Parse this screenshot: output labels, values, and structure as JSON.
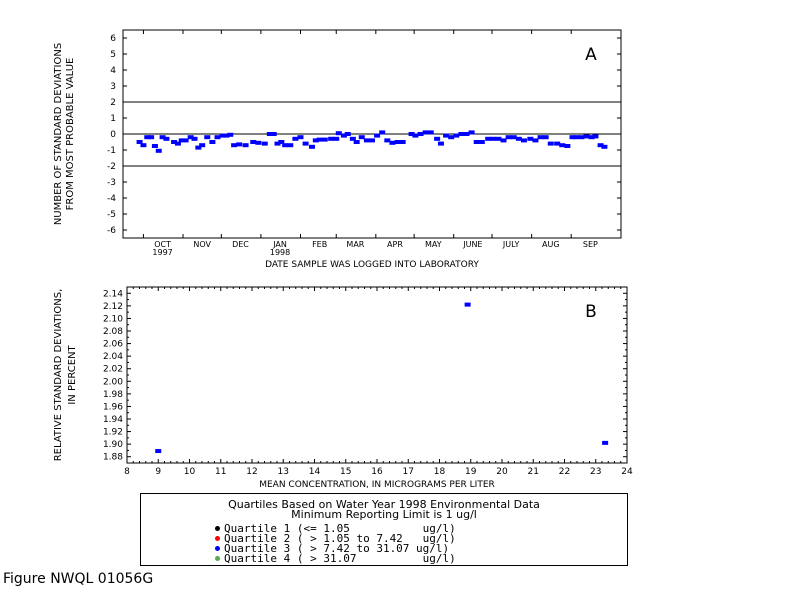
{
  "chart_data": [
    {
      "type": "scatter",
      "panel_label": "A",
      "xlabel": "DATE SAMPLE WAS LOGGED INTO LABORATORY",
      "ylabel": [
        "NUMBER OF STANDARD DEVIATIONS",
        "FROM MOST PROBABLE VALUE"
      ],
      "xlim": [
        "1997-09-15",
        "1998-10-10"
      ],
      "ylim": [
        -6.5,
        6.5
      ],
      "yticks": [
        6,
        5,
        4,
        3,
        2,
        1,
        0,
        -1,
        -2,
        -3,
        -4,
        -5,
        -6
      ],
      "xticks": [
        {
          "date": "1997-10-01",
          "label": "OCT",
          "sublabel": "1997"
        },
        {
          "date": "1997-11-01",
          "label": "NOV"
        },
        {
          "date": "1997-12-01",
          "label": "DEC"
        },
        {
          "date": "1998-01-01",
          "label": "JAN",
          "sublabel": "1998"
        },
        {
          "date": "1998-02-01",
          "label": "FEB"
        },
        {
          "date": "1998-03-01",
          "label": "MAR"
        },
        {
          "date": "1998-04-01",
          "label": "APR"
        },
        {
          "date": "1998-05-01",
          "label": "MAY"
        },
        {
          "date": "1998-06-01",
          "label": "JUNE"
        },
        {
          "date": "1998-07-01",
          "label": "JULY"
        },
        {
          "date": "1998-08-01",
          "label": "AUG"
        },
        {
          "date": "1998-09-01",
          "label": "SEP"
        }
      ],
      "reference_lines": [
        2,
        0,
        -2
      ],
      "series": [
        {
          "color": "#0000ff",
          "points": [
            [
              "1997-09-28",
              -0.5
            ],
            [
              "1997-10-01",
              -0.7
            ],
            [
              "1997-10-04",
              -0.2
            ],
            [
              "1997-10-07",
              -0.2
            ],
            [
              "1997-10-10",
              -0.75
            ],
            [
              "1997-10-13",
              -1.05
            ],
            [
              "1997-10-16",
              -0.2
            ],
            [
              "1997-10-19",
              -0.3
            ],
            [
              "1997-10-25",
              -0.5
            ],
            [
              "1997-10-28",
              -0.6
            ],
            [
              "1997-10-31",
              -0.4
            ],
            [
              "1997-11-03",
              -0.4
            ],
            [
              "1997-11-07",
              -0.2
            ],
            [
              "1997-11-10",
              -0.3
            ],
            [
              "1997-11-13",
              -0.85
            ],
            [
              "1997-11-16",
              -0.7
            ],
            [
              "1997-11-20",
              -0.2
            ],
            [
              "1997-11-24",
              -0.5
            ],
            [
              "1997-11-28",
              -0.2
            ],
            [
              "1997-12-02",
              -0.1
            ],
            [
              "1997-12-05",
              -0.1
            ],
            [
              "1997-12-08",
              -0.05
            ],
            [
              "1997-12-11",
              -0.7
            ],
            [
              "1997-12-15",
              -0.65
            ],
            [
              "1997-12-20",
              -0.7
            ],
            [
              "1997-12-26",
              -0.5
            ],
            [
              "1997-12-30",
              -0.55
            ],
            [
              "1998-01-04",
              -0.6
            ],
            [
              "1998-01-08",
              0.0
            ],
            [
              "1998-01-11",
              0.0
            ],
            [
              "1998-01-14",
              -0.6
            ],
            [
              "1998-01-17",
              -0.5
            ],
            [
              "1998-01-20",
              -0.7
            ],
            [
              "1998-01-24",
              -0.7
            ],
            [
              "1998-01-28",
              -0.3
            ],
            [
              "1998-02-01",
              -0.2
            ],
            [
              "1998-02-05",
              -0.6
            ],
            [
              "1998-02-10",
              -0.8
            ],
            [
              "1998-02-13",
              -0.4
            ],
            [
              "1998-02-16",
              -0.35
            ],
            [
              "1998-02-20",
              -0.35
            ],
            [
              "1998-02-25",
              -0.3
            ],
            [
              "1998-03-01",
              -0.3
            ],
            [
              "1998-03-03",
              0.05
            ],
            [
              "1998-03-07",
              -0.1
            ],
            [
              "1998-03-10",
              0.0
            ],
            [
              "1998-03-14",
              -0.3
            ],
            [
              "1998-03-17",
              -0.5
            ],
            [
              "1998-03-21",
              -0.2
            ],
            [
              "1998-03-25",
              -0.4
            ],
            [
              "1998-03-29",
              -0.4
            ],
            [
              "1998-04-02",
              -0.1
            ],
            [
              "1998-04-06",
              0.1
            ],
            [
              "1998-04-10",
              -0.4
            ],
            [
              "1998-04-14",
              -0.55
            ],
            [
              "1998-04-18",
              -0.5
            ],
            [
              "1998-04-22",
              -0.5
            ],
            [
              "1998-04-29",
              0.0
            ],
            [
              "1998-05-02",
              -0.1
            ],
            [
              "1998-05-06",
              0.0
            ],
            [
              "1998-05-10",
              0.1
            ],
            [
              "1998-05-14",
              0.1
            ],
            [
              "1998-05-19",
              -0.3
            ],
            [
              "1998-05-22",
              -0.6
            ],
            [
              "1998-05-26",
              -0.1
            ],
            [
              "1998-05-30",
              -0.2
            ],
            [
              "1998-06-03",
              -0.1
            ],
            [
              "1998-06-07",
              0.0
            ],
            [
              "1998-06-11",
              0.0
            ],
            [
              "1998-06-15",
              0.1
            ],
            [
              "1998-06-19",
              -0.5
            ],
            [
              "1998-06-23",
              -0.5
            ],
            [
              "1998-06-28",
              -0.3
            ],
            [
              "1998-07-02",
              -0.3
            ],
            [
              "1998-07-06",
              -0.3
            ],
            [
              "1998-07-10",
              -0.4
            ],
            [
              "1998-07-14",
              -0.2
            ],
            [
              "1998-07-18",
              -0.2
            ],
            [
              "1998-07-22",
              -0.3
            ],
            [
              "1998-07-26",
              -0.4
            ],
            [
              "1998-07-31",
              -0.3
            ],
            [
              "1998-08-04",
              -0.4
            ],
            [
              "1998-08-08",
              -0.2
            ],
            [
              "1998-08-12",
              -0.2
            ],
            [
              "1998-08-16",
              -0.6
            ],
            [
              "1998-08-21",
              -0.6
            ],
            [
              "1998-08-25",
              -0.7
            ],
            [
              "1998-08-29",
              -0.75
            ],
            [
              "1998-09-02",
              -0.2
            ],
            [
              "1998-09-05",
              -0.2
            ],
            [
              "1998-09-09",
              -0.2
            ],
            [
              "1998-09-13",
              -0.15
            ],
            [
              "1998-09-17",
              -0.2
            ],
            [
              "1998-09-20",
              -0.15
            ],
            [
              "1998-09-24",
              -0.7
            ],
            [
              "1998-09-27",
              -0.8
            ]
          ]
        }
      ]
    },
    {
      "type": "scatter",
      "panel_label": "B",
      "xlabel": "MEAN CONCENTRATION, IN MICROGRAMS PER LITER",
      "ylabel": [
        "RELATIVE STANDARD DEVIATIONS,",
        "IN PERCENT"
      ],
      "xlim": [
        8,
        24
      ],
      "ylim": [
        1.87,
        2.15
      ],
      "xticks": [
        8,
        9,
        10,
        11,
        12,
        13,
        14,
        15,
        16,
        17,
        18,
        19,
        20,
        21,
        22,
        23,
        24
      ],
      "yticks": [
        2.14,
        2.12,
        2.1,
        2.08,
        2.06,
        2.04,
        2.02,
        2.0,
        1.98,
        1.96,
        1.94,
        1.92,
        1.9,
        1.88
      ],
      "series": [
        {
          "color": "#0000ff",
          "points": [
            [
              9.0,
              1.889
            ],
            [
              18.9,
              2.122
            ],
            [
              23.3,
              1.902
            ]
          ]
        }
      ]
    }
  ],
  "legend": {
    "title_line1": "Quartiles Based on Water Year 1998 Environmental Data",
    "title_line2": "Minimum Reporting Limit is 1 ug/l",
    "items": [
      {
        "label": "Quartile 1 (<= 1.05           ug/l)",
        "color": "#000000"
      },
      {
        "label": "Quartile 2 ( > 1.05 to 7.42   ug/l)",
        "color": "#ff0000"
      },
      {
        "label": "Quartile 3 ( > 7.42 to 31.07 ug/l)",
        "color": "#0000ff"
      },
      {
        "label": "Quartile 4 ( > 31.07          ug/l)",
        "color": "#55aa55"
      }
    ]
  },
  "caption": "Figure NWQL 01056G"
}
